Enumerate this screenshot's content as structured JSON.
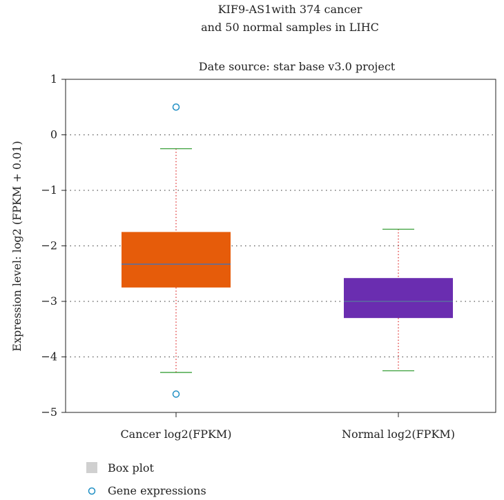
{
  "chart_data": {
    "type": "box",
    "title_lines": [
      "KIF9-AS1with 374 cancer",
      "and 50 normal samples in LIHC"
    ],
    "subtitle": "Date source: star base v3.0 project",
    "ylabel": "Expression level: log2 (FPKM + 0.01)",
    "ylim": [
      -5,
      1
    ],
    "yticks": [
      1,
      0,
      -1,
      -2,
      -3,
      -4,
      -5
    ],
    "ytick_labels": [
      "1",
      "0",
      "−1",
      "−2",
      "−3",
      "−4",
      "−5"
    ],
    "grid": "horizontal dotted",
    "categories": [
      "Cancer log2(FPKM)",
      "Normal log2(FPKM)"
    ],
    "boxes": [
      {
        "category": "Cancer log2(FPKM)",
        "color": "#e65c0a",
        "whisker_low": -4.28,
        "q1": -2.75,
        "median": -2.33,
        "q3": -1.75,
        "whisker_high": -0.25,
        "outliers": [
          0.5,
          -4.67
        ]
      },
      {
        "category": "Normal log2(FPKM)",
        "color": "#6a2db0",
        "whisker_low": -4.25,
        "q1": -3.3,
        "median": -3.0,
        "q3": -2.58,
        "whisker_high": -1.7,
        "outliers": []
      }
    ],
    "median_color": "#5a6ea0",
    "whisker_cap_color": "#3aa03a",
    "whisker_line_color": "#e03030",
    "outlier_color": "#1f8fc4",
    "legend": [
      {
        "label": "Box plot",
        "marker": "square",
        "color": "#d0d0d0"
      },
      {
        "label": "Gene expressions",
        "marker": "circle",
        "color": "#1f8fc4"
      }
    ],
    "legend_position": "bottom-left"
  }
}
